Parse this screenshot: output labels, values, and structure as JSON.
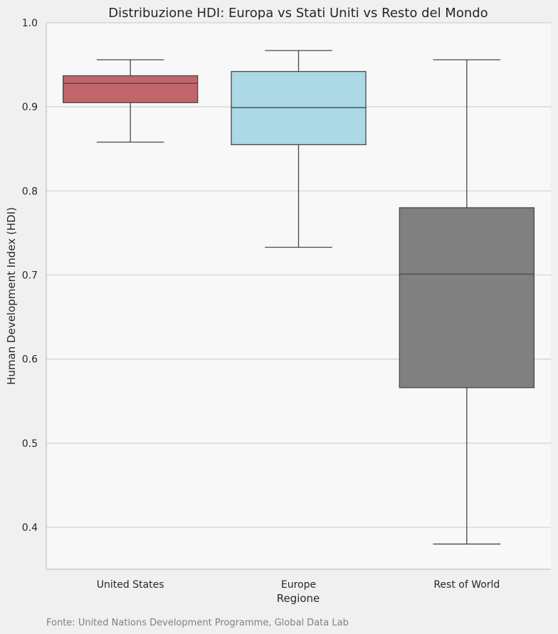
{
  "chart_data": {
    "type": "box",
    "title": "Distribuzione HDI: Europa vs Stati Uniti vs Resto del Mondo",
    "xlabel": "Regione",
    "ylabel": "Human Development Index (HDI)",
    "ylim": [
      0.35,
      1.0
    ],
    "yticks": [
      0.4,
      0.5,
      0.6,
      0.7,
      0.8,
      0.9,
      1.0
    ],
    "ytick_labels": [
      "0.4",
      "0.5",
      "0.6",
      "0.7",
      "0.8",
      "0.9",
      "1.0"
    ],
    "grid": true,
    "categories": [
      "United States",
      "Europe",
      "Rest of World"
    ],
    "boxes": [
      {
        "name": "United States",
        "whisker_low": 0.858,
        "q1": 0.905,
        "median": 0.928,
        "q3": 0.937,
        "whisker_high": 0.956,
        "color": "#c1666b"
      },
      {
        "name": "Europe",
        "whisker_low": 0.733,
        "q1": 0.855,
        "median": 0.899,
        "q3": 0.942,
        "whisker_high": 0.967,
        "color": "#add8e6"
      },
      {
        "name": "Rest of World",
        "whisker_low": 0.38,
        "q1": 0.566,
        "median": 0.701,
        "q3": 0.78,
        "whisker_high": 0.956,
        "color": "#808080"
      }
    ],
    "source": "Fonte: United Nations Development Programme, Global Data Lab"
  }
}
